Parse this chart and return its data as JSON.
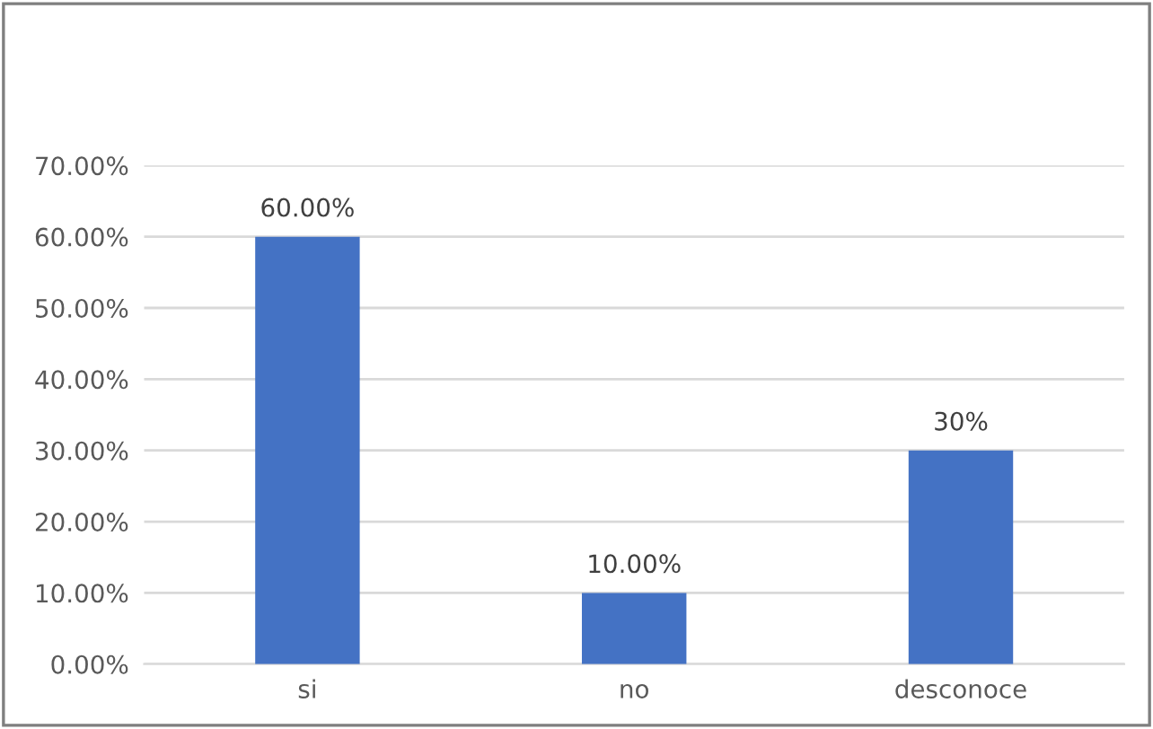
{
  "chart_data": {
    "type": "bar",
    "categories": [
      "si",
      "no",
      "desconoce"
    ],
    "values": [
      60,
      10,
      30
    ],
    "color": "#4472c4",
    "value_labels": [
      "60.00%",
      "10.00%",
      "30%"
    ],
    "ylim": [
      0,
      70
    ],
    "yticks": [
      {
        "value": 0,
        "label": "0.00%"
      },
      {
        "value": 10,
        "label": "10.00%"
      },
      {
        "value": 20,
        "label": "20.00%"
      },
      {
        "value": 30,
        "label": "30.00%"
      },
      {
        "value": 40,
        "label": "40.00%"
      },
      {
        "value": 50,
        "label": "50.00%"
      },
      {
        "value": 60,
        "label": "60.00%"
      },
      {
        "value": 70,
        "label": "70.00%"
      }
    ],
    "grid": "y",
    "legend": false
  }
}
